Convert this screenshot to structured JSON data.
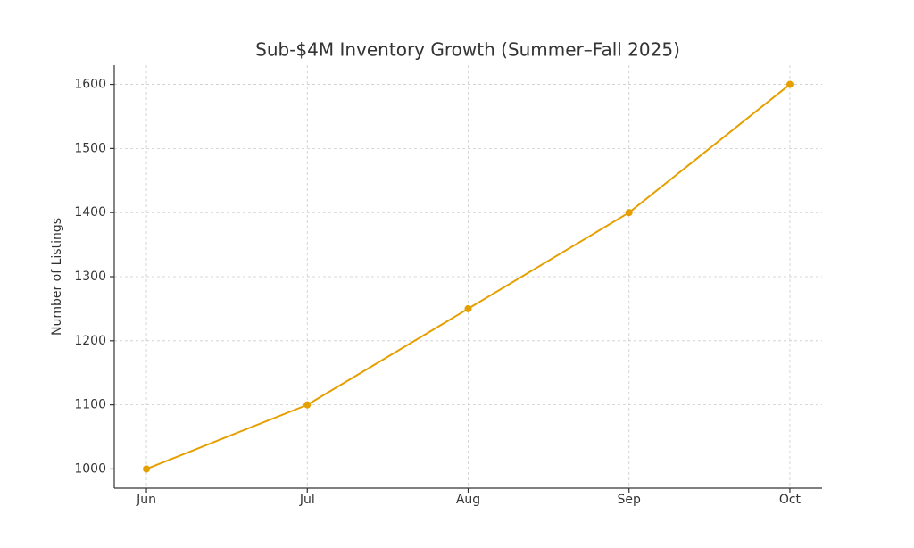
{
  "chart_data": {
    "type": "line",
    "title": "Sub-$4M Inventory Growth (Summer–Fall 2025)",
    "y_label": "Number of Listings",
    "categories": [
      "Jun",
      "Jul",
      "Aug",
      "Sep",
      "Oct"
    ],
    "values": [
      1000,
      1100,
      1250,
      1400,
      1600
    ],
    "color": "#e69f00",
    "ylim": [
      970,
      1630
    ],
    "yticks": [
      1000,
      1100,
      1200,
      1300,
      1400,
      1500,
      1600
    ],
    "grid": true
  }
}
